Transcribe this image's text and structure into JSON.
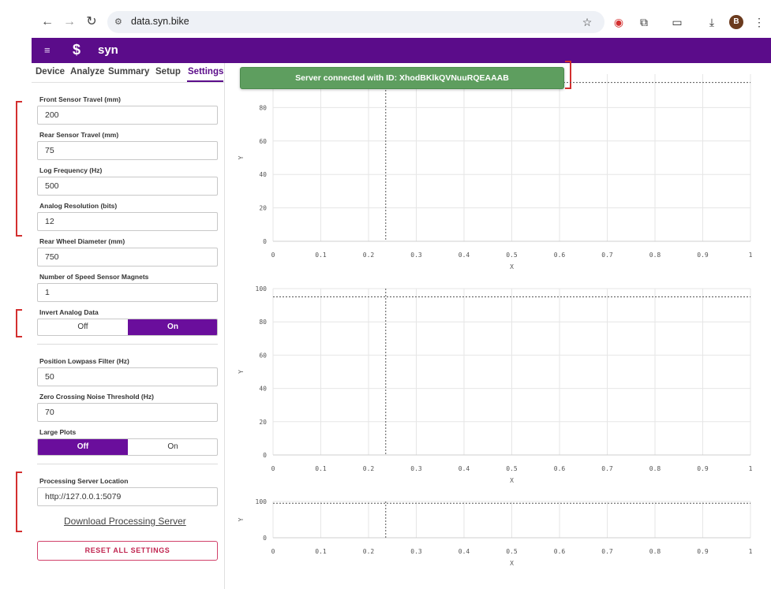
{
  "browser": {
    "url": "data.syn.bike",
    "avatar_letter": "B",
    "icons": [
      "back-arrow-icon",
      "forward-arrow-icon",
      "reload-icon",
      "site-settings-icon",
      "star-icon",
      "extension-record-icon",
      "extensions-puzzle-icon",
      "tab-search-icon",
      "download-icon",
      "kebab-menu-icon"
    ]
  },
  "header": {
    "logo_text": "syn",
    "brand_color": "#5b0c8a"
  },
  "tabs": [
    {
      "label": "Device"
    },
    {
      "label": "Analyze"
    },
    {
      "label": "Summary"
    },
    {
      "label": "Setup"
    },
    {
      "label": "Settings",
      "active": true
    }
  ],
  "settings": {
    "front_travel": {
      "label": "Front Sensor Travel (mm)",
      "value": "200"
    },
    "rear_travel": {
      "label": "Rear Sensor Travel (mm)",
      "value": "75"
    },
    "log_frequency": {
      "label": "Log Frequency (Hz)",
      "value": "500"
    },
    "analog_resolution": {
      "label": "Analog Resolution (bits)",
      "value": "12"
    },
    "rear_wheel_diameter": {
      "label": "Rear Wheel Diameter (mm)",
      "value": "750"
    },
    "speed_magnets": {
      "label": "Number of Speed Sensor Magnets",
      "value": "1"
    },
    "invert_analog": {
      "label": "Invert Analog Data",
      "off": "Off",
      "on": "On",
      "selected": "On"
    },
    "lowpass": {
      "label": "Position Lowpass Filter (Hz)",
      "value": "50"
    },
    "zero_crossing": {
      "label": "Zero Crossing Noise Threshold (Hz)",
      "value": "70"
    },
    "large_plots": {
      "label": "Large Plots",
      "off": "Off",
      "on": "On",
      "selected": "Off"
    },
    "server_location": {
      "label": "Processing Server Location",
      "value": "http://127.0.0.1:5079"
    },
    "download_label": "Download Processing Server",
    "reset_label": "RESET ALL SETTINGS"
  },
  "toast": {
    "message": "Server connected with ID: XhodBKlkQVNuuRQEAAAB",
    "color": "#5e9e5f"
  },
  "chart_data": [
    {
      "type": "line",
      "xlabel": "X",
      "ylabel": "Y",
      "xlim": [
        0,
        1
      ],
      "ylim": [
        0,
        100
      ],
      "x_ticks": [
        "0",
        "0.1",
        "0.2",
        "0.3",
        "0.4",
        "0.5",
        "0.6",
        "0.7",
        "0.8",
        "0.9",
        "1"
      ],
      "y_ticks": [
        "0",
        "20",
        "40",
        "60",
        "80"
      ],
      "cursor_x": 0.236,
      "cursor_y": 95,
      "grid": true
    },
    {
      "type": "line",
      "xlabel": "X",
      "ylabel": "Y",
      "xlim": [
        0,
        1
      ],
      "ylim": [
        0,
        100
      ],
      "x_ticks": [
        "0",
        "0.1",
        "0.2",
        "0.3",
        "0.4",
        "0.5",
        "0.6",
        "0.7",
        "0.8",
        "0.9",
        "1"
      ],
      "y_ticks": [
        "0",
        "20",
        "40",
        "60",
        "80",
        "100"
      ],
      "cursor_x": 0.236,
      "cursor_y": 95,
      "grid": true
    },
    {
      "type": "line",
      "xlabel": "X",
      "ylabel": "Y",
      "xlim": [
        0,
        1
      ],
      "ylim": [
        0,
        100
      ],
      "x_ticks": [
        "0",
        "0.1",
        "0.2",
        "0.3",
        "0.4",
        "0.5",
        "0.6",
        "0.7",
        "0.8",
        "0.9",
        "1"
      ],
      "y_ticks": [
        "0",
        "100"
      ],
      "cursor_x": 0.236,
      "cursor_y": 95,
      "grid": true
    }
  ]
}
